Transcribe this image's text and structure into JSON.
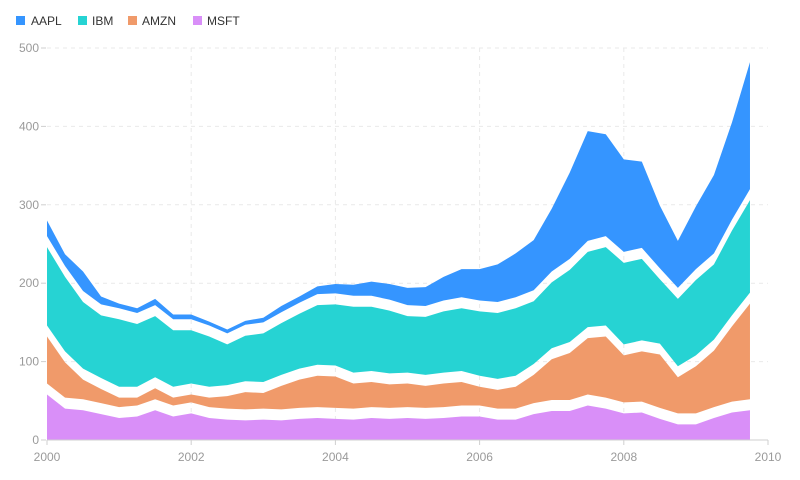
{
  "chart_data": {
    "type": "area",
    "stacked": true,
    "stack_gap": 14,
    "legend_position": "top-left",
    "grid": true,
    "xlim": [
      2000,
      2010
    ],
    "ylim": [
      0,
      500
    ],
    "x_ticks": [
      2000,
      2002,
      2004,
      2006,
      2008,
      2010
    ],
    "y_ticks": [
      0,
      100,
      200,
      300,
      400,
      500
    ],
    "x_ticks_labels": [
      "2000",
      "2002",
      "2004",
      "2006",
      "2008",
      "2010"
    ],
    "y_ticks_labels": [
      "0",
      "100",
      "200",
      "300",
      "400",
      "500"
    ],
    "x": [
      2000.0,
      2000.25,
      2000.5,
      2000.75,
      2001.0,
      2001.25,
      2001.5,
      2001.75,
      2002.0,
      2002.25,
      2002.5,
      2002.75,
      2003.0,
      2003.25,
      2003.5,
      2003.75,
      2004.0,
      2004.25,
      2004.5,
      2004.75,
      2005.0,
      2005.25,
      2005.5,
      2005.75,
      2006.0,
      2006.25,
      2006.5,
      2006.75,
      2007.0,
      2007.25,
      2007.5,
      2007.75,
      2008.0,
      2008.25,
      2008.5,
      2008.75,
      2009.0,
      2009.25,
      2009.5,
      2009.75
    ],
    "series": [
      {
        "name": "MSFT",
        "color": "#d98ff8",
        "values": [
          58,
          40,
          38,
          33,
          28,
          30,
          38,
          30,
          34,
          28,
          26,
          25,
          26,
          25,
          27,
          28,
          27,
          26,
          28,
          27,
          28,
          27,
          28,
          30,
          30,
          26,
          26,
          33,
          37,
          37,
          44,
          40,
          34,
          35,
          27,
          20,
          20,
          28,
          35,
          38
        ]
      },
      {
        "name": "AMZN",
        "color": "#f09a6a",
        "values": [
          60,
          45,
          25,
          18,
          12,
          10,
          14,
          10,
          10,
          12,
          16,
          22,
          20,
          30,
          36,
          40,
          40,
          32,
          32,
          30,
          30,
          28,
          30,
          30,
          24,
          24,
          28,
          36,
          52,
          60,
          72,
          78,
          60,
          64,
          68,
          46,
          60,
          72,
          96,
          122
        ]
      },
      {
        "name": "IBM",
        "color": "#26d3d3",
        "values": [
          100,
          95,
          85,
          80,
          86,
          80,
          78,
          72,
          68,
          64,
          52,
          58,
          62,
          66,
          70,
          76,
          78,
          84,
          82,
          80,
          72,
          74,
          78,
          80,
          82,
          84,
          86,
          80,
          84,
          92,
          96,
          100,
          104,
          104,
          82,
          86,
          96,
          96,
          108,
          118
        ]
      },
      {
        "name": "AAPL",
        "color": "#3595ff",
        "values": [
          20,
          15,
          25,
          10,
          6,
          6,
          8,
          6,
          6,
          5,
          5,
          5,
          6,
          8,
          8,
          10,
          12,
          14,
          18,
          20,
          22,
          24,
          30,
          36,
          40,
          48,
          56,
          64,
          80,
          110,
          140,
          130,
          118,
          110,
          80,
          60,
          80,
          100,
          124,
          162
        ]
      }
    ]
  }
}
